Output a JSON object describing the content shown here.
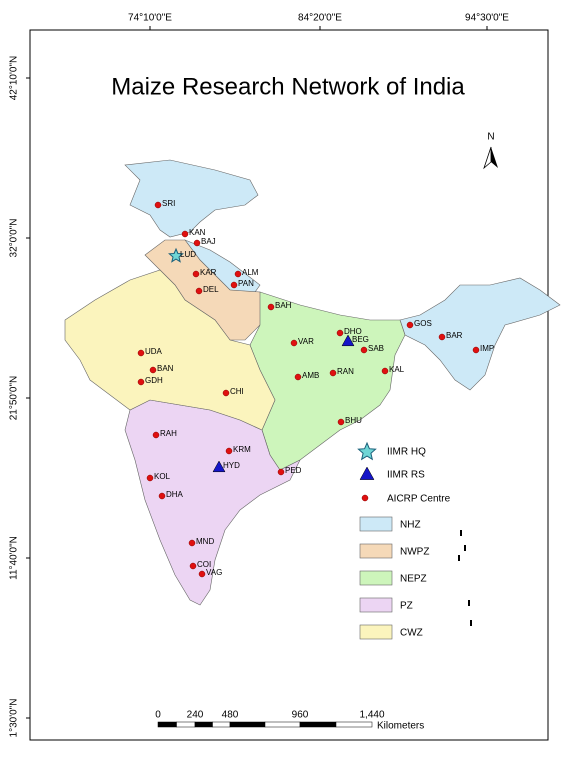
{
  "title": "Maize Research Network of India",
  "north_arrow": "N",
  "graticule": {
    "top": [
      "74°10'0\"E",
      "84°20'0\"E",
      "94°30'0\"E"
    ],
    "left": [
      "42°10'0\"N",
      "32°0'0\"N",
      "21°50'0\"N",
      "11°40'0\"N",
      "1°30'0\"N"
    ]
  },
  "centres": [
    "SRI",
    "KAN",
    "BAJ",
    "LUD",
    "KAR",
    "ALM",
    "PAN",
    "DEL",
    "BAH",
    "DHO",
    "BEG",
    "SAB",
    "VAR",
    "GOS",
    "BAR",
    "IMP",
    "UDA",
    "BAN",
    "GDH",
    "AMB",
    "RAN",
    "KAL",
    "CHI",
    "BHU",
    "RAH",
    "KRM",
    "HYD",
    "PED",
    "KOL",
    "DHA",
    "MND",
    "COI",
    "VAG"
  ],
  "legend": {
    "symbols": [
      "IIMR HQ",
      "IIMR RS",
      "AICRP Centre"
    ],
    "zones": [
      {
        "label": "NHZ",
        "color": "#cde9f7"
      },
      {
        "label": "NWPZ",
        "color": "#f5d9b8"
      },
      {
        "label": "NEPZ",
        "color": "#cdf5bb"
      },
      {
        "label": "PZ",
        "color": "#ecd5f3"
      },
      {
        "label": "CWZ",
        "color": "#fbf4bd"
      }
    ]
  },
  "scale_bar": {
    "ticks": [
      "0",
      "240",
      "480",
      "960",
      "1,440"
    ],
    "unit": "Kilometers"
  }
}
